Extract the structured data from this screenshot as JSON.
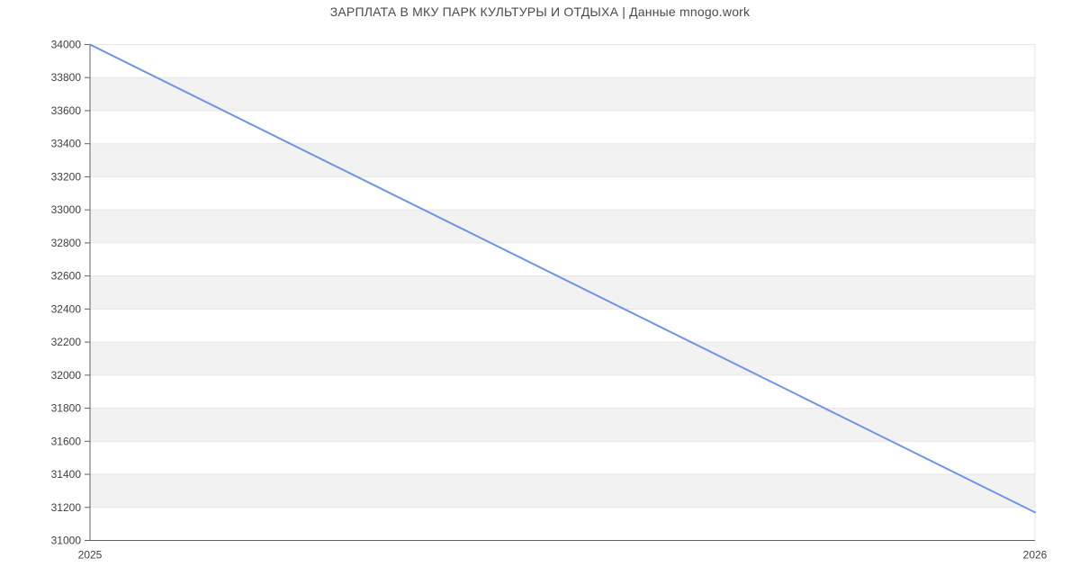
{
  "chart_data": {
    "type": "line",
    "title": "ЗАРПЛАТА В МКУ ПАРК КУЛЬТУРЫ И ОТДЫХА | Данные mnogo.work",
    "x": [
      2025,
      2026
    ],
    "x_tick_labels": [
      "2025",
      "2026"
    ],
    "series": [
      {
        "values": [
          34000,
          31170
        ]
      }
    ],
    "xlim": [
      2025,
      2026
    ],
    "ylim": [
      31000,
      34000
    ],
    "y_ticks": [
      31000,
      31200,
      31400,
      31600,
      31800,
      32000,
      32200,
      32400,
      32600,
      32800,
      33000,
      33200,
      33400,
      33600,
      33800,
      34000
    ],
    "y_tick_step": 200,
    "grid": "horizontal gridlines with alternating shaded bands (top band white)",
    "legend": "none",
    "colors": {
      "line": "#6d94e7",
      "band": "#f2f2f2",
      "gridline": "#e6e6e6",
      "axis": "#616161",
      "tick_label": "#404040",
      "title": "#4a4a4a",
      "background": "#ffffff"
    }
  }
}
